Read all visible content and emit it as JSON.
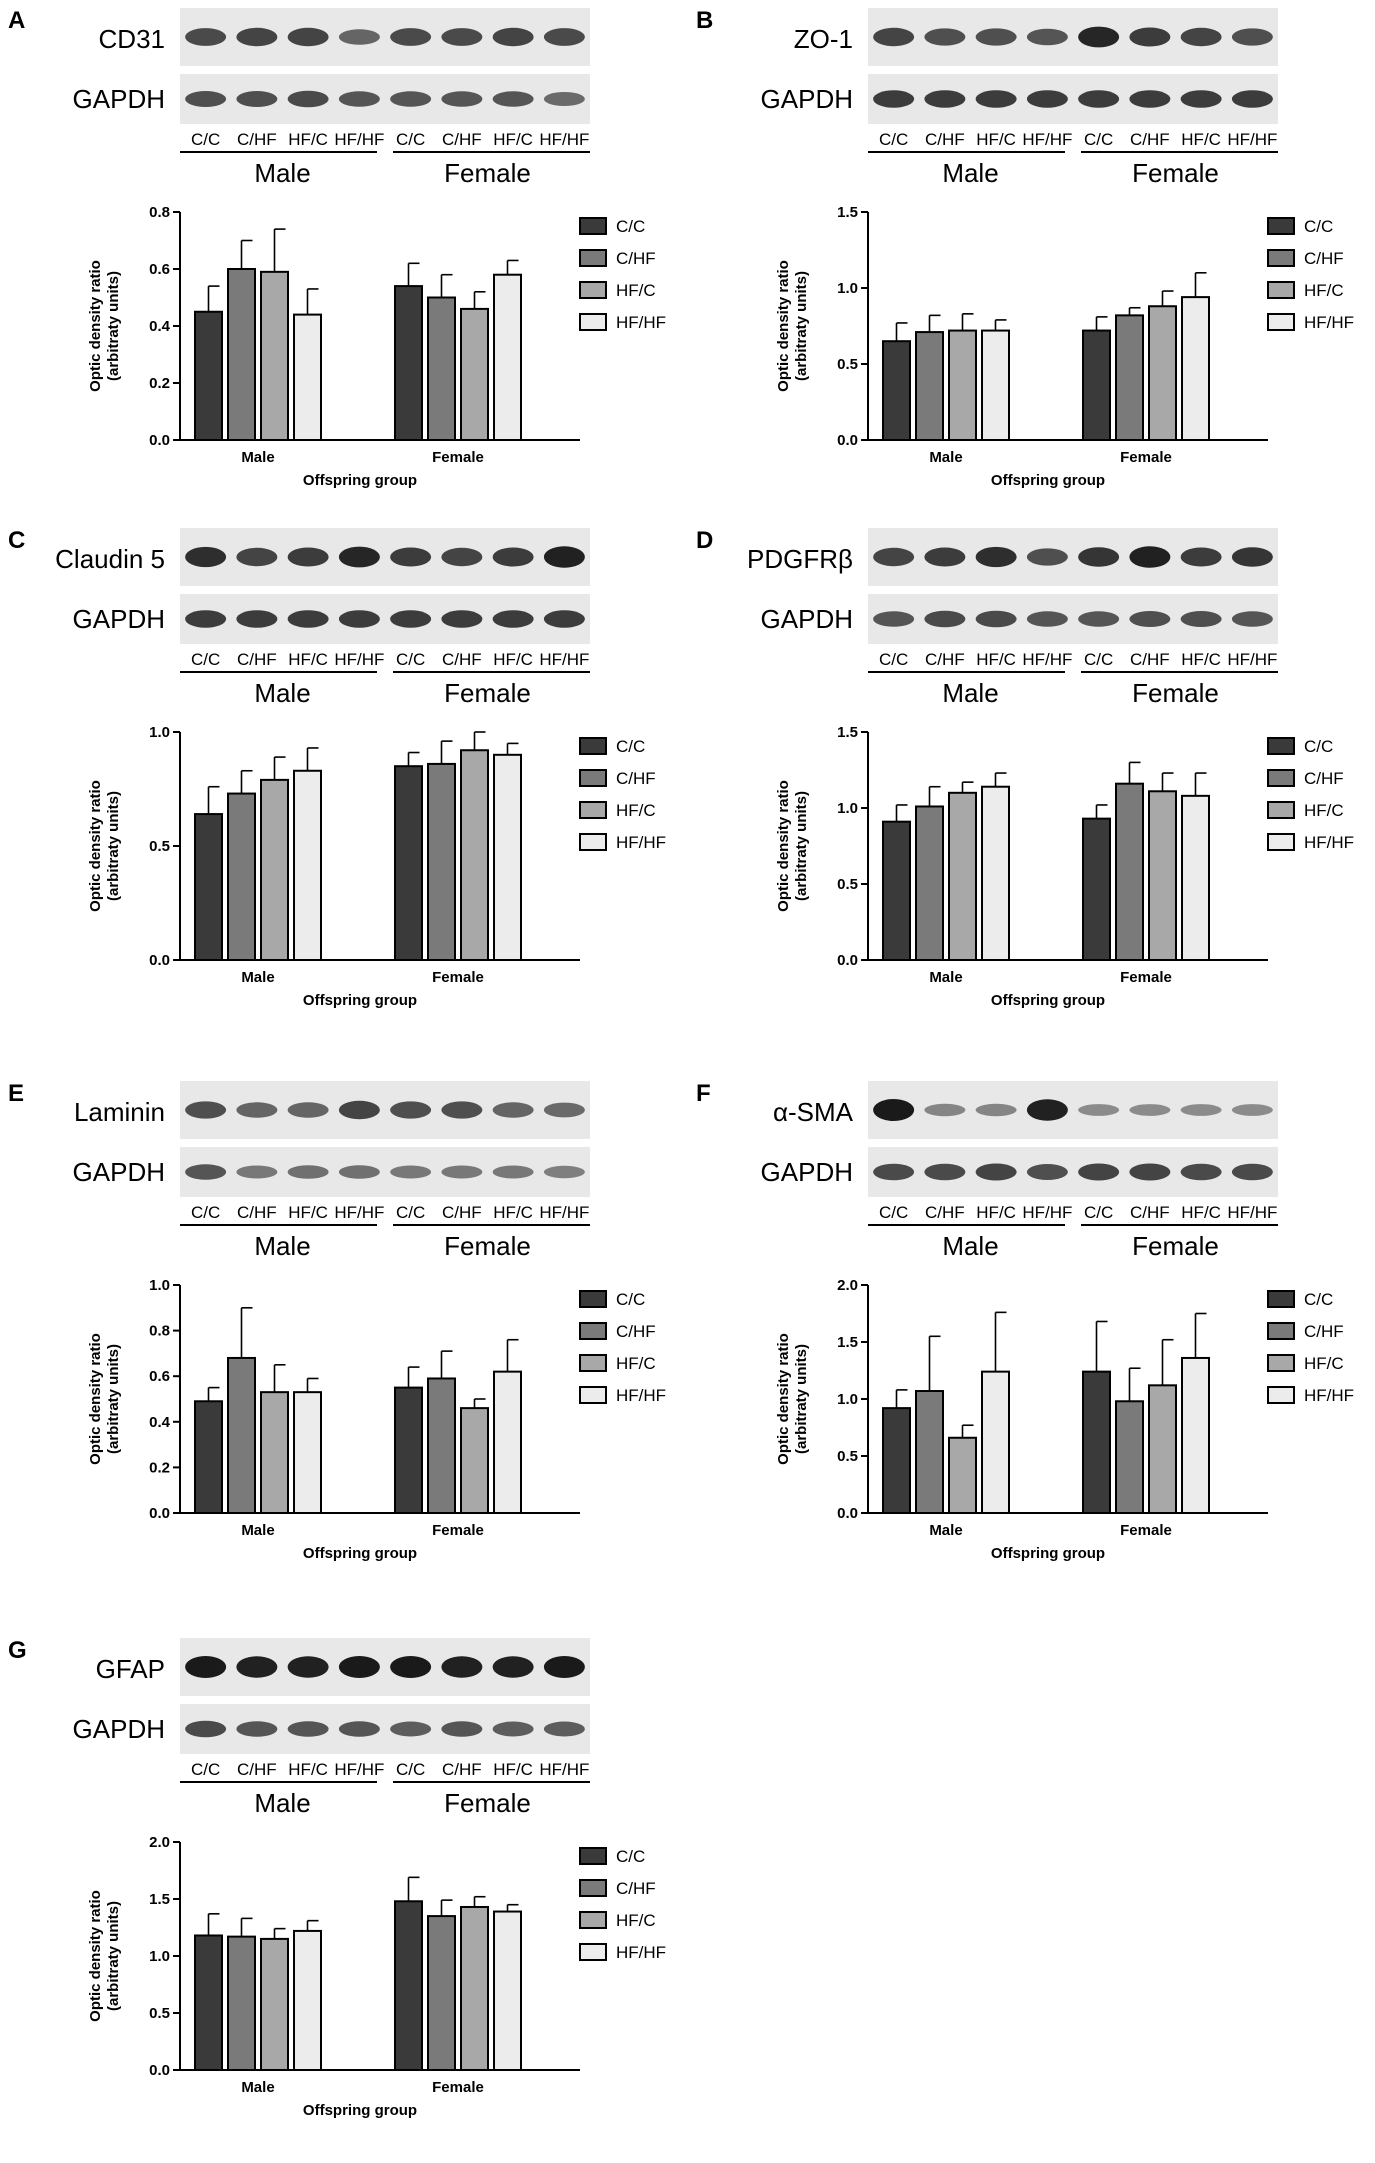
{
  "colors": {
    "C/C": "#3a3a3a",
    "C/HF": "#7a7a7a",
    "HF/C": "#a8a8a8",
    "HF/HF": "#ececec",
    "blot_bg": "#e8e8e8",
    "band": "#1a1a1a"
  },
  "common": {
    "lanes": [
      "C/C",
      "C/HF",
      "HF/C",
      "HF/HF",
      "C/C",
      "C/HF",
      "HF/C",
      "HF/HF"
    ],
    "sex_groups": [
      "Male",
      "Female"
    ],
    "loading_control": "GAPDH",
    "ylabel_line1": "Optic density ratio",
    "ylabel_line2": "(arbitraty units)",
    "xlabel": "Offspring group",
    "legend": [
      "C/C",
      "C/HF",
      "HF/C",
      "HF/HF"
    ]
  },
  "chart_data": [
    {
      "panel": "A",
      "type": "bar",
      "target": "CD31",
      "categories": [
        "Male",
        "Female"
      ],
      "ylim": [
        0,
        0.8
      ],
      "yticks": [
        "0.0",
        "0.2",
        "0.4",
        "0.6",
        "0.8"
      ],
      "ytick_values": [
        0,
        0.2,
        0.4,
        0.6,
        0.8
      ],
      "series": [
        {
          "name": "C/C",
          "values": [
            0.45,
            0.54
          ],
          "errors": [
            0.09,
            0.08
          ]
        },
        {
          "name": "C/HF",
          "values": [
            0.6,
            0.5
          ],
          "errors": [
            0.1,
            0.08
          ]
        },
        {
          "name": "HF/C",
          "values": [
            0.59,
            0.46
          ],
          "errors": [
            0.15,
            0.06
          ]
        },
        {
          "name": "HF/HF",
          "values": [
            0.44,
            0.58
          ],
          "errors": [
            0.09,
            0.05
          ]
        }
      ]
    },
    {
      "panel": "B",
      "type": "bar",
      "target": "ZO-1",
      "categories": [
        "Male",
        "Female"
      ],
      "ylim": [
        0,
        1.5
      ],
      "yticks": [
        "0.0",
        "0.5",
        "1.0",
        "1.5"
      ],
      "ytick_values": [
        0,
        0.5,
        1.0,
        1.5
      ],
      "series": [
        {
          "name": "C/C",
          "values": [
            0.65,
            0.72
          ],
          "errors": [
            0.12,
            0.09
          ]
        },
        {
          "name": "C/HF",
          "values": [
            0.71,
            0.82
          ],
          "errors": [
            0.11,
            0.05
          ]
        },
        {
          "name": "HF/C",
          "values": [
            0.72,
            0.88
          ],
          "errors": [
            0.11,
            0.1
          ]
        },
        {
          "name": "HF/HF",
          "values": [
            0.72,
            0.94
          ],
          "errors": [
            0.07,
            0.16
          ]
        }
      ]
    },
    {
      "panel": "C",
      "type": "bar",
      "target": "Claudin 5",
      "categories": [
        "Male",
        "Female"
      ],
      "ylim": [
        0,
        1.0
      ],
      "yticks": [
        "0.0",
        "0.5",
        "1.0"
      ],
      "ytick_values": [
        0,
        0.5,
        1.0
      ],
      "series": [
        {
          "name": "C/C",
          "values": [
            0.64,
            0.85
          ],
          "errors": [
            0.12,
            0.06
          ]
        },
        {
          "name": "C/HF",
          "values": [
            0.73,
            0.86
          ],
          "errors": [
            0.1,
            0.1
          ]
        },
        {
          "name": "HF/C",
          "values": [
            0.79,
            0.92
          ],
          "errors": [
            0.1,
            0.08
          ]
        },
        {
          "name": "HF/HF",
          "values": [
            0.83,
            0.9
          ],
          "errors": [
            0.1,
            0.05
          ]
        }
      ]
    },
    {
      "panel": "D",
      "type": "bar",
      "target": "PDGFRβ",
      "categories": [
        "Male",
        "Female"
      ],
      "ylim": [
        0,
        1.5
      ],
      "yticks": [
        "0.0",
        "0.5",
        "1.0",
        "1.5"
      ],
      "ytick_values": [
        0,
        0.5,
        1.0,
        1.5
      ],
      "series": [
        {
          "name": "C/C",
          "values": [
            0.91,
            0.93
          ],
          "errors": [
            0.11,
            0.09
          ]
        },
        {
          "name": "C/HF",
          "values": [
            1.01,
            1.16
          ],
          "errors": [
            0.13,
            0.14
          ]
        },
        {
          "name": "HF/C",
          "values": [
            1.1,
            1.11
          ],
          "errors": [
            0.07,
            0.12
          ]
        },
        {
          "name": "HF/HF",
          "values": [
            1.14,
            1.08
          ],
          "errors": [
            0.09,
            0.15
          ]
        }
      ]
    },
    {
      "panel": "E",
      "type": "bar",
      "target": "Laminin",
      "categories": [
        "Male",
        "Female"
      ],
      "ylim": [
        0,
        1.0
      ],
      "yticks": [
        "0.0",
        "0.2",
        "0.4",
        "0.6",
        "0.8",
        "1.0"
      ],
      "ytick_values": [
        0,
        0.2,
        0.4,
        0.6,
        0.8,
        1.0
      ],
      "series": [
        {
          "name": "C/C",
          "values": [
            0.49,
            0.55
          ],
          "errors": [
            0.06,
            0.09
          ]
        },
        {
          "name": "C/HF",
          "values": [
            0.68,
            0.59
          ],
          "errors": [
            0.22,
            0.12
          ]
        },
        {
          "name": "HF/C",
          "values": [
            0.53,
            0.46
          ],
          "errors": [
            0.12,
            0.04
          ]
        },
        {
          "name": "HF/HF",
          "values": [
            0.53,
            0.62
          ],
          "errors": [
            0.06,
            0.14
          ]
        }
      ]
    },
    {
      "panel": "F",
      "type": "bar",
      "target": "α-SMA",
      "categories": [
        "Male",
        "Female"
      ],
      "ylim": [
        0,
        2.0
      ],
      "yticks": [
        "0.0",
        "0.5",
        "1.0",
        "1.5",
        "2.0"
      ],
      "ytick_values": [
        0,
        0.5,
        1.0,
        1.5,
        2.0
      ],
      "series": [
        {
          "name": "C/C",
          "values": [
            0.92,
            1.24
          ],
          "errors": [
            0.16,
            0.44
          ]
        },
        {
          "name": "C/HF",
          "values": [
            1.07,
            0.98
          ],
          "errors": [
            0.48,
            0.29
          ]
        },
        {
          "name": "HF/C",
          "values": [
            0.66,
            1.12
          ],
          "errors": [
            0.11,
            0.4
          ]
        },
        {
          "name": "HF/HF",
          "values": [
            1.24,
            1.36
          ],
          "errors": [
            0.52,
            0.39
          ]
        }
      ]
    },
    {
      "panel": "G",
      "type": "bar",
      "target": "GFAP",
      "categories": [
        "Male",
        "Female"
      ],
      "ylim": [
        0,
        2.0
      ],
      "yticks": [
        "0.0",
        "0.5",
        "1.0",
        "1.5",
        "2.0"
      ],
      "ytick_values": [
        0,
        0.5,
        1.0,
        1.5,
        2.0
      ],
      "series": [
        {
          "name": "C/C",
          "values": [
            1.18,
            1.48
          ],
          "errors": [
            0.19,
            0.21
          ]
        },
        {
          "name": "C/HF",
          "values": [
            1.17,
            1.35
          ],
          "errors": [
            0.16,
            0.14
          ]
        },
        {
          "name": "HF/C",
          "values": [
            1.15,
            1.43
          ],
          "errors": [
            0.09,
            0.09
          ]
        },
        {
          "name": "HF/HF",
          "values": [
            1.22,
            1.39
          ],
          "errors": [
            0.09,
            0.06
          ]
        }
      ]
    }
  ],
  "blots": {
    "A": {
      "target": [
        0.65,
        0.7,
        0.7,
        0.45,
        0.65,
        0.65,
        0.7,
        0.65
      ],
      "gapdh": [
        0.6,
        0.6,
        0.65,
        0.55,
        0.55,
        0.55,
        0.55,
        0.4
      ]
    },
    "B": {
      "target": [
        0.7,
        0.6,
        0.6,
        0.55,
        0.9,
        0.75,
        0.7,
        0.6
      ],
      "gapdh": [
        0.75,
        0.75,
        0.75,
        0.75,
        0.75,
        0.75,
        0.75,
        0.75
      ]
    },
    "C": {
      "target": [
        0.85,
        0.7,
        0.75,
        0.9,
        0.75,
        0.7,
        0.75,
        0.95
      ],
      "gapdh": [
        0.75,
        0.75,
        0.75,
        0.75,
        0.75,
        0.75,
        0.75,
        0.75
      ]
    },
    "D": {
      "target": [
        0.7,
        0.75,
        0.85,
        0.6,
        0.8,
        0.95,
        0.75,
        0.8
      ],
      "gapdh": [
        0.55,
        0.65,
        0.65,
        0.55,
        0.55,
        0.6,
        0.6,
        0.55
      ]
    },
    "E": {
      "target": [
        0.6,
        0.45,
        0.45,
        0.7,
        0.6,
        0.6,
        0.45,
        0.4
      ],
      "gapdh": [
        0.55,
        0.3,
        0.35,
        0.35,
        0.3,
        0.3,
        0.3,
        0.25
      ]
    },
    "F": {
      "target": [
        1.0,
        0.2,
        0.2,
        0.95,
        0.15,
        0.15,
        0.15,
        0.15
      ],
      "gapdh": [
        0.65,
        0.65,
        0.7,
        0.6,
        0.7,
        0.7,
        0.65,
        0.65
      ]
    },
    "G": {
      "target": [
        1.0,
        0.95,
        0.95,
        1.0,
        1.0,
        0.95,
        0.95,
        1.0
      ],
      "gapdh": [
        0.65,
        0.55,
        0.55,
        0.55,
        0.5,
        0.55,
        0.5,
        0.5
      ]
    }
  }
}
